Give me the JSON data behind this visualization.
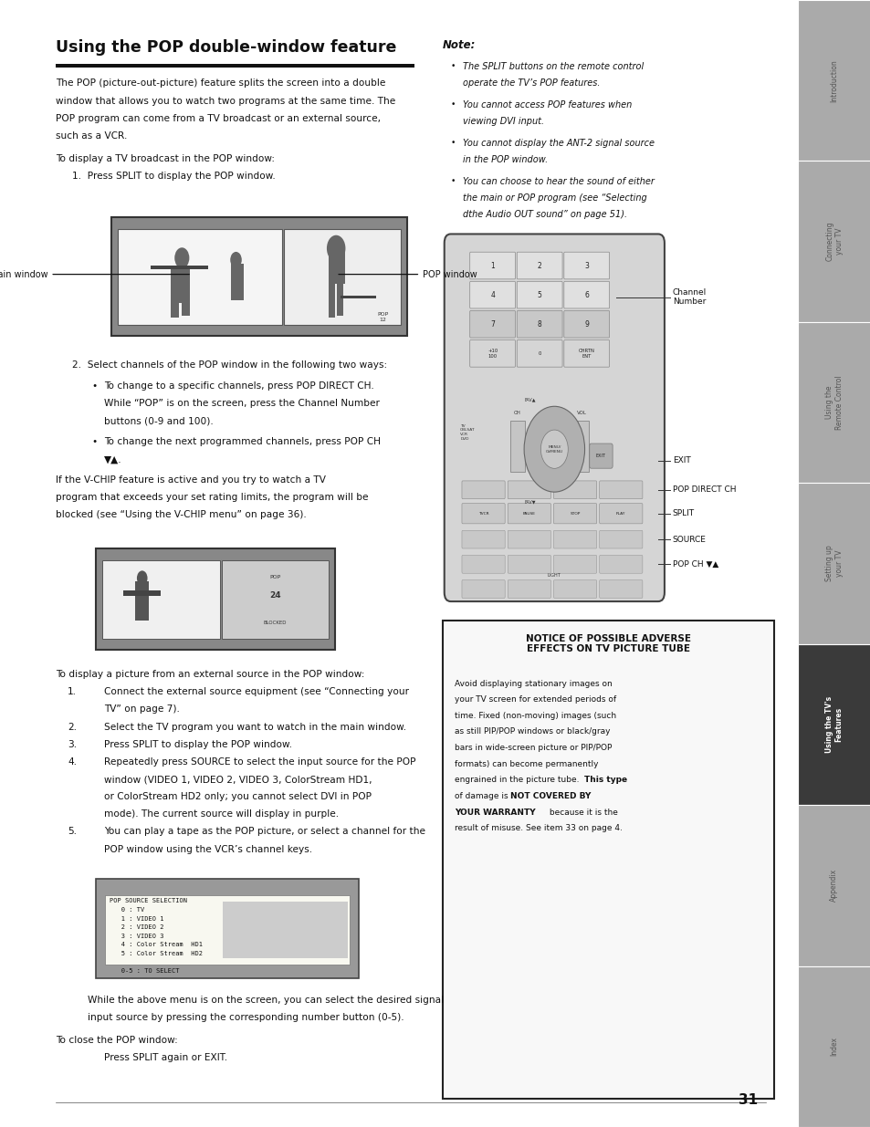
{
  "title": "Using the POP double-window feature",
  "page_number": "31",
  "bg_color": "#ffffff",
  "sidebar_tabs": [
    {
      "label": "Introduction",
      "active": false
    },
    {
      "label": "Connecting\nyour TV",
      "active": false
    },
    {
      "label": "Using the\nRemote Control",
      "active": false
    },
    {
      "label": "Setting up\nyour TV",
      "active": false
    },
    {
      "label": "Using the TV's\nFeatures",
      "active": true
    },
    {
      "label": "Appendix",
      "active": false
    },
    {
      "label": "Index",
      "active": false
    }
  ],
  "note_bullets": [
    "The SPLIT buttons on the remote control\noperate the TV’s POP features.",
    "You cannot access POP features when\nviewing DVI input.",
    "You cannot display the ANT-2 signal source\nin the POP window.",
    "You can choose to hear the sound of either\nthe main or POP program (see “Selecting\ndthe Audio OUT sound” on page 51)."
  ],
  "remote_labels": [
    "Channel\nNumber",
    "EXIT",
    "POP DIRECT CH",
    "SPLIT",
    "SOURCE",
    "POP CH ▼▲"
  ],
  "notice_title": "NOTICE OF POSSIBLE ADVERSE\nEFFECTS ON TV PICTURE TUBE",
  "notice_body": [
    [
      "normal",
      "Avoid displaying stationary images on"
    ],
    [
      "normal",
      "your TV screen for extended periods of"
    ],
    [
      "normal",
      "time. Fixed (non-moving) images (such"
    ],
    [
      "normal",
      "as still PIP/POP windows or black/gray"
    ],
    [
      "normal",
      "bars in wide-screen picture or PIP/POP"
    ],
    [
      "normal",
      "formats) can become permanently"
    ],
    [
      "normal",
      "engrained in the picture tube. "
    ],
    [
      "bold",
      "This type"
    ],
    [
      "bold",
      "of damage is NOT COVERED BY"
    ],
    [
      "bold",
      "YOUR WARRANTY"
    ],
    [
      "normal",
      " because it is the"
    ],
    [
      "normal",
      "result of misuse. See item 33 on page 4."
    ]
  ]
}
